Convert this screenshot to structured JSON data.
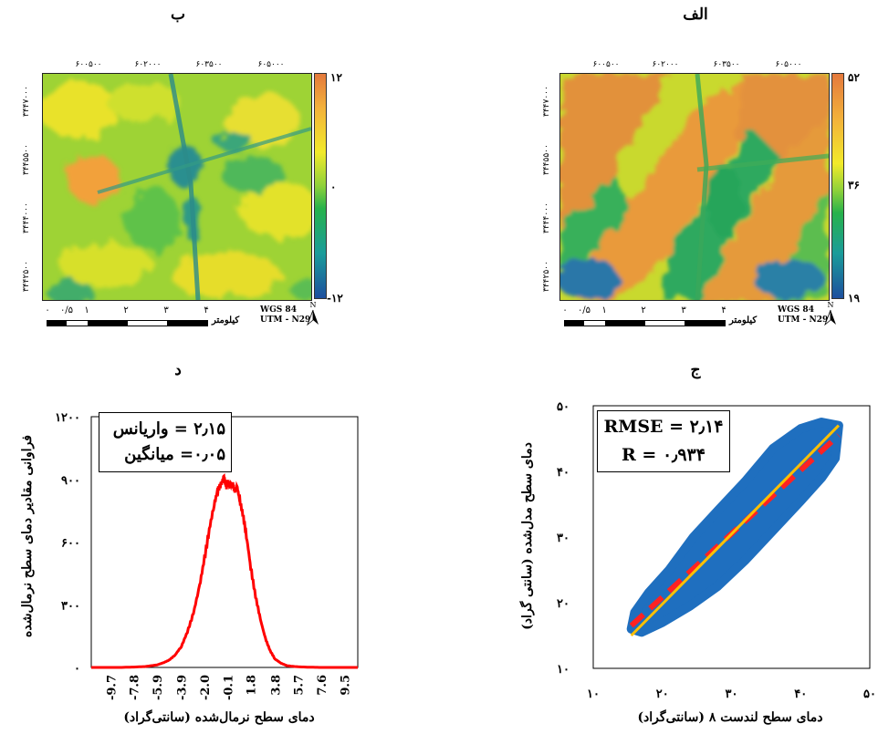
{
  "panels": {
    "map_b": {
      "title": "ب",
      "top_ticks": [
        "۶۰۰۵۰۰",
        "۶۰۲۰۰۰",
        "۶۰۳۵۰۰",
        "۶۰۵۰۰۰"
      ],
      "left_ticks": [
        "۳۴۴۷۰۰۰",
        "۳۴۴۵۵۰۰",
        "۳۴۴۴۰۰۰",
        "۳۴۴۲۵۰۰"
      ],
      "colorbar": {
        "max": "۱۲",
        "mid": "۰",
        "min": "-۱۲"
      },
      "scale_labels": [
        "۰",
        "۰/۵",
        "۱",
        "۲",
        "۳",
        "۴"
      ],
      "scale_unit": "کیلومتر",
      "datum": "WGS 84",
      "projection": "UTM - N29",
      "north": "N"
    },
    "map_alef": {
      "title": "الف",
      "top_ticks": [
        "۶۰۰۵۰۰",
        "۶۰۲۰۰۰",
        "۶۰۳۵۰۰",
        "۶۰۵۰۰۰"
      ],
      "left_ticks": [
        "۳۴۴۷۰۰۰",
        "۳۴۴۵۵۰۰",
        "۳۴۴۴۰۰۰",
        "۳۴۴۲۵۰۰"
      ],
      "colorbar": {
        "max": "۵۲",
        "mid": "۳۶",
        "min": "۱۹"
      },
      "scale_labels": [
        "۰",
        "۰/۵",
        "۱",
        "۲",
        "۳",
        "۴"
      ],
      "scale_unit": "کیلومتر",
      "datum": "WGS 84",
      "projection": "UTM - N29",
      "north": "N"
    }
  },
  "chart_data": [
    {
      "panel": "د",
      "type": "line",
      "title": "د",
      "xlabel": "دمای سطح نرمال‌شده (سانتی‌گراد)",
      "ylabel": "فراوانی مقادیر دمای سطح نرمال‌شده",
      "x_tick_labels": [
        "-9.7",
        "-7.8",
        "-5.9",
        "-3.9",
        "-2.0",
        "-0.1",
        "1.8",
        "3.8",
        "5.7",
        "7.6",
        "9.5"
      ],
      "x_ticks": [
        -9.7,
        -7.8,
        -5.9,
        -3.9,
        -2.0,
        -0.1,
        1.8,
        3.8,
        5.7,
        7.6,
        9.5
      ],
      "xlim": [
        -11.3,
        10.6
      ],
      "y_tick_labels": [
        "۰",
        "۳۰۰",
        "۶۰۰",
        "۹۰۰",
        "۱۲۰۰"
      ],
      "y_ticks": [
        0,
        300,
        600,
        900,
        1200
      ],
      "ylim": [
        0,
        1200
      ],
      "series_color": "#ff0000",
      "legend_lines": [
        "۲٫۱۵ = واریانس",
        "۰٫۰۵=  میانگین"
      ],
      "x": [
        -11.3,
        -10.5,
        -9.7,
        -8.8,
        -7.8,
        -6.9,
        -5.9,
        -5.4,
        -4.9,
        -4.4,
        -3.9,
        -3.4,
        -2.9,
        -2.4,
        -2.0,
        -1.6,
        -1.2,
        -0.9,
        -0.6,
        -0.4,
        -0.2,
        -0.1,
        0.1,
        0.3,
        0.5,
        0.7,
        0.9,
        1.2,
        1.5,
        1.8,
        2.2,
        2.6,
        3.0,
        3.4,
        3.8,
        4.3,
        4.8,
        5.7,
        6.6,
        7.6,
        8.5,
        9.5,
        10.6
      ],
      "y": [
        0,
        0,
        0,
        0,
        2,
        4,
        12,
        22,
        35,
        60,
        100,
        170,
        260,
        390,
        520,
        660,
        780,
        850,
        880,
        910,
        860,
        890,
        870,
        880,
        845,
        860,
        800,
        720,
        610,
        480,
        340,
        230,
        140,
        80,
        40,
        20,
        8,
        3,
        1,
        0,
        0,
        0,
        0
      ]
    },
    {
      "panel": "ج",
      "type": "scatter",
      "title": "ج",
      "xlabel": "دمای سطح  لندست ۸ (سانتی‌گراد)",
      "ylabel": "دمای سطح مدل‌شده (سانتی گراد)",
      "x_tick_labels": [
        "۱۰",
        "۲۰",
        "۳۰",
        "۴۰",
        "۵۰"
      ],
      "x_ticks": [
        10,
        20,
        30,
        40,
        50
      ],
      "xlim": [
        10,
        50
      ],
      "y_tick_labels": [
        "۱۰",
        "۲۰",
        "۳۰",
        "۴۰",
        "۵۰"
      ],
      "y_ticks": [
        10,
        20,
        30,
        40,
        50
      ],
      "ylim": [
        10,
        50
      ],
      "point_color": "#1f6fbf",
      "stats_lines": [
        "RMSE = ۲٫۱۴",
        "R = ۰٫۹۳۴"
      ],
      "cloud_outline": [
        [
          15.5,
          16.0
        ],
        [
          16.0,
          18.5
        ],
        [
          18.0,
          21.5
        ],
        [
          21.0,
          25.0
        ],
        [
          24.5,
          30.0
        ],
        [
          28.0,
          34.0
        ],
        [
          32.0,
          38.5
        ],
        [
          36.0,
          43.5
        ],
        [
          40.0,
          46.5
        ],
        [
          43.0,
          47.5
        ],
        [
          45.5,
          47.0
        ],
        [
          45.0,
          42.0
        ],
        [
          43.0,
          39.0
        ],
        [
          40.0,
          35.5
        ],
        [
          36.0,
          31.0
        ],
        [
          32.0,
          26.5
        ],
        [
          28.0,
          22.5
        ],
        [
          24.0,
          19.5
        ],
        [
          20.0,
          17.0
        ],
        [
          17.0,
          15.5
        ]
      ],
      "fit_line": {
        "color": "#ff2222",
        "dashed": true,
        "points": [
          [
            15.5,
            16.5
          ],
          [
            45.5,
            45.5
          ]
        ]
      },
      "one_to_one_line": {
        "color": "#ffc000",
        "points": [
          [
            15.5,
            15.0
          ],
          [
            45.5,
            47.0
          ]
        ]
      }
    }
  ]
}
